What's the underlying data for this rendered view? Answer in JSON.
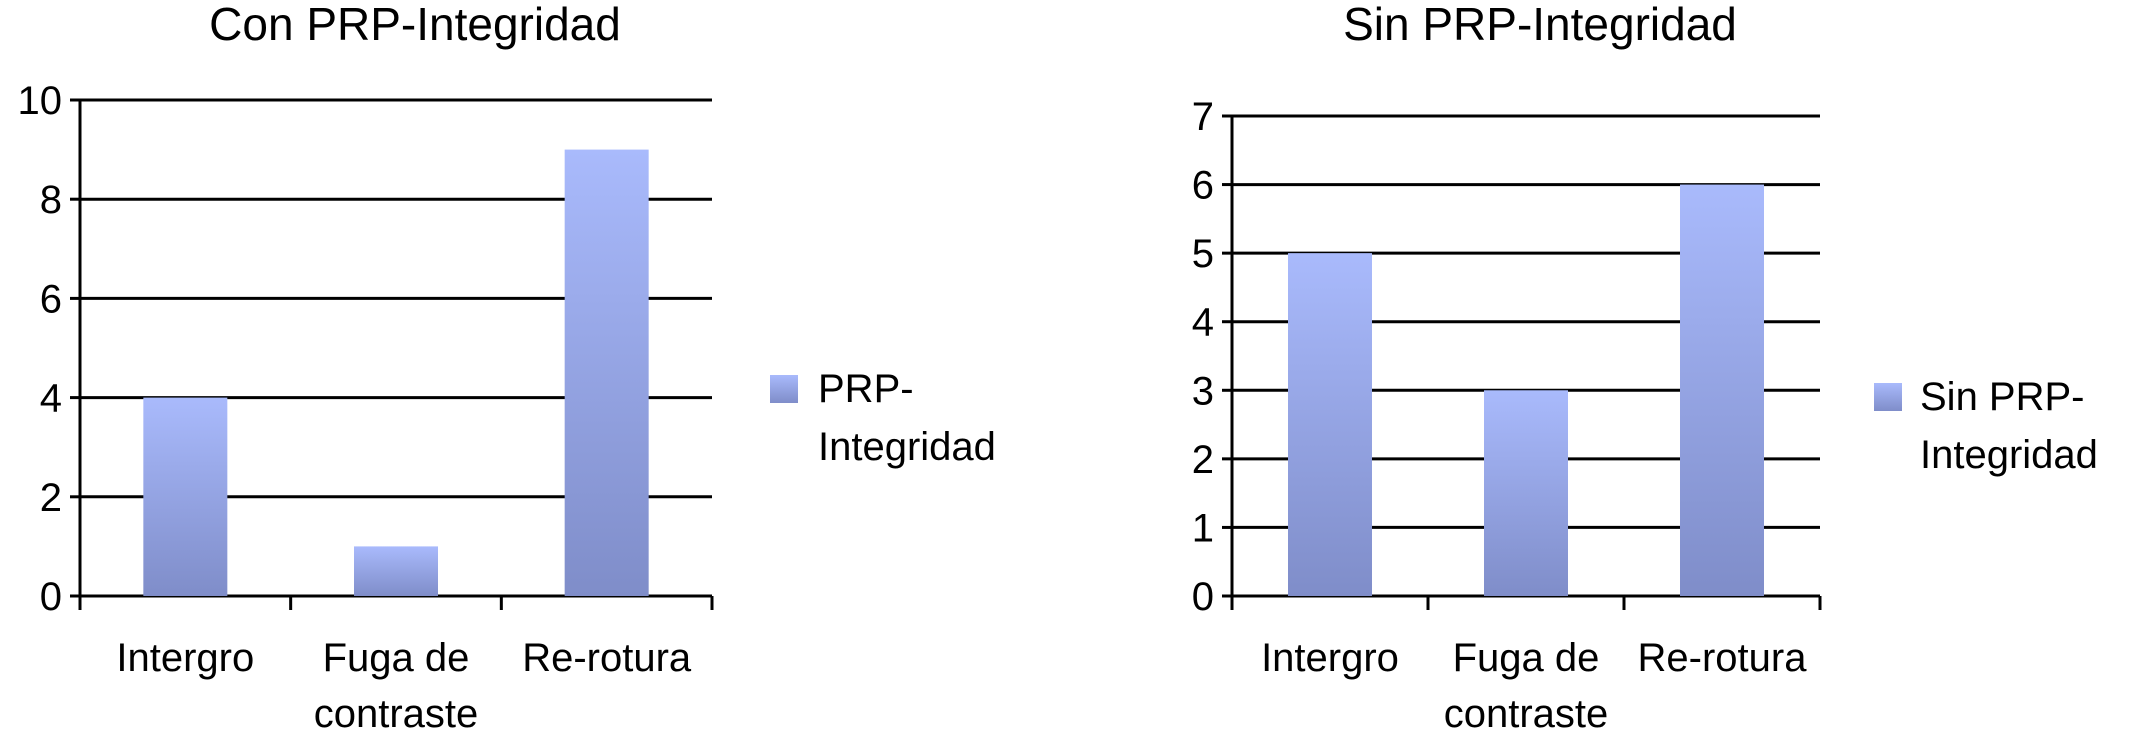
{
  "chart_data": [
    {
      "type": "bar",
      "title": "Con PRP-Integridad",
      "categories": [
        [
          "Intergro"
        ],
        [
          "Fuga de",
          "contraste"
        ],
        [
          "Re-rotura"
        ]
      ],
      "series": [
        {
          "name": [
            "PRP-",
            "Integridad"
          ],
          "values": [
            4,
            1,
            9
          ]
        }
      ],
      "ylim": [
        0,
        10
      ],
      "yticks": [
        0,
        2,
        4,
        6,
        8,
        10
      ],
      "grid": true,
      "legend": "right",
      "bar_color_top": "#a9bafc",
      "bar_color_bottom": "#7f8dc9"
    },
    {
      "type": "bar",
      "title": "Sin PRP-Integridad",
      "categories": [
        [
          "Intergro"
        ],
        [
          "Fuga de",
          "contraste"
        ],
        [
          "Re-rotura"
        ]
      ],
      "series": [
        {
          "name": [
            "Sin PRP-",
            "Integridad"
          ],
          "values": [
            5,
            3,
            6
          ]
        }
      ],
      "ylim": [
        0,
        7
      ],
      "yticks": [
        0,
        1,
        2,
        3,
        4,
        5,
        6,
        7
      ],
      "grid": true,
      "legend": "right",
      "bar_color_top": "#a9bafc",
      "bar_color_bottom": "#7f8dc9"
    }
  ]
}
